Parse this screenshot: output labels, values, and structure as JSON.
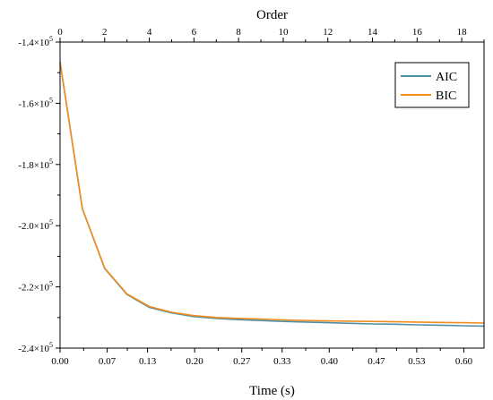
{
  "chart_data": {
    "type": "line",
    "title": "",
    "xlabel": "Time (s)",
    "x2label": "Order",
    "ylabel": "",
    "xlim": [
      0,
      0.63
    ],
    "x2lim": [
      0,
      19
    ],
    "ylim": [
      -240000,
      -140000
    ],
    "x_ticks": [
      "0.00",
      "0.07",
      "0.13",
      "0.20",
      "0.27",
      "0.33",
      "0.40",
      "0.47",
      "0.53",
      "0.60"
    ],
    "x2_ticks": [
      "0",
      "2",
      "4",
      "6",
      "8",
      "10",
      "12",
      "14",
      "16",
      "18"
    ],
    "y_ticks": [
      {
        "mantissa": "-1.4",
        "exp": "5"
      },
      {
        "mantissa": "-1.6",
        "exp": "5"
      },
      {
        "mantissa": "-1.8",
        "exp": "5"
      },
      {
        "mantissa": "-2.0",
        "exp": "5"
      },
      {
        "mantissa": "-2.2",
        "exp": "5"
      },
      {
        "mantissa": "-2.4",
        "exp": "5"
      }
    ],
    "legend_position": "top-right",
    "grid": false,
    "series": [
      {
        "name": "AIC",
        "color": "#4f8fa6",
        "points": [
          [
            0,
            -146500
          ],
          [
            1,
            -194500
          ],
          [
            2,
            -214000
          ],
          [
            3,
            -222500
          ],
          [
            4,
            -226700
          ],
          [
            5,
            -228500
          ],
          [
            6,
            -229700
          ],
          [
            7,
            -230300
          ],
          [
            8,
            -230700
          ],
          [
            9,
            -231000
          ],
          [
            10,
            -231300
          ],
          [
            11,
            -231500
          ],
          [
            12,
            -231700
          ],
          [
            13,
            -231900
          ],
          [
            14,
            -232100
          ],
          [
            15,
            -232200
          ],
          [
            16,
            -232400
          ],
          [
            17,
            -232500
          ],
          [
            18,
            -232700
          ],
          [
            19,
            -232800
          ]
        ]
      },
      {
        "name": "BIC",
        "color": "#f28c1e",
        "points": [
          [
            0,
            -146500
          ],
          [
            1,
            -194400
          ],
          [
            2,
            -213900
          ],
          [
            3,
            -222300
          ],
          [
            4,
            -226400
          ],
          [
            5,
            -228300
          ],
          [
            6,
            -229400
          ],
          [
            7,
            -230000
          ],
          [
            8,
            -230300
          ],
          [
            9,
            -230500
          ],
          [
            10,
            -230800
          ],
          [
            11,
            -231000
          ],
          [
            12,
            -231100
          ],
          [
            13,
            -231200
          ],
          [
            14,
            -231300
          ],
          [
            15,
            -231400
          ],
          [
            16,
            -231500
          ],
          [
            17,
            -231600
          ],
          [
            18,
            -231700
          ],
          [
            19,
            -231800
          ]
        ]
      }
    ]
  }
}
